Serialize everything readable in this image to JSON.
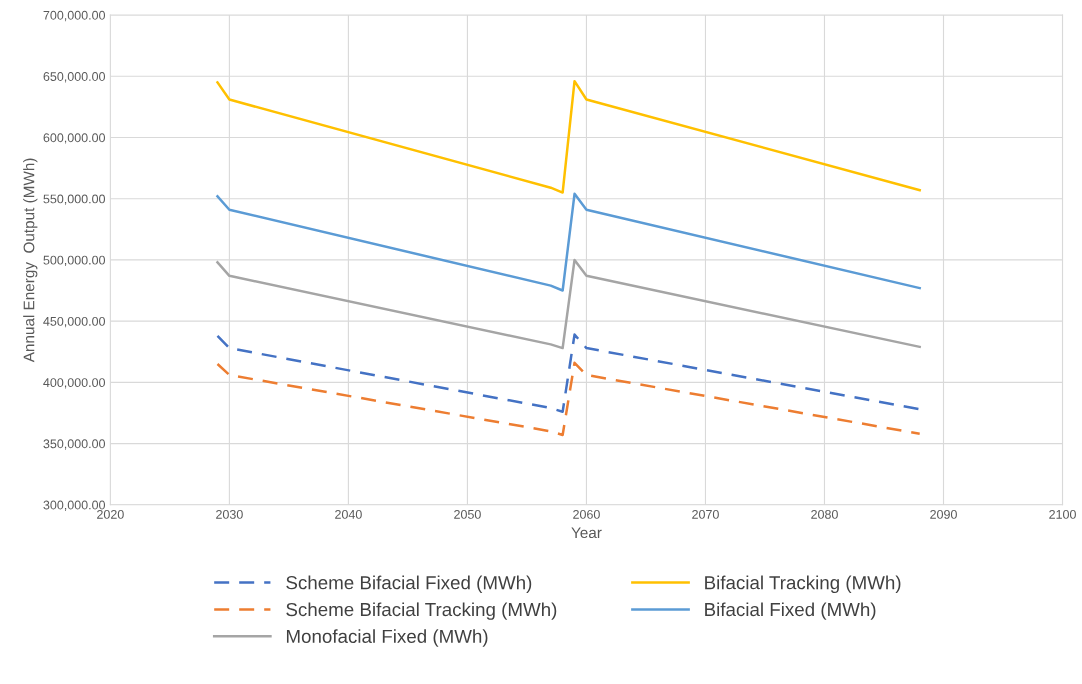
{
  "chart_data": {
    "type": "line",
    "xlabel": "Year",
    "ylabel": "Annual Energy  Output (MWh)",
    "xlim": [
      2020,
      2100
    ],
    "xticks": [
      2020,
      2030,
      2040,
      2050,
      2060,
      2070,
      2080,
      2090,
      2100
    ],
    "ylim": [
      300000,
      700000
    ],
    "yticks": [
      {
        "value": 300000,
        "label": "300,000.00"
      },
      {
        "value": 350000,
        "label": "350,000.00"
      },
      {
        "value": 400000,
        "label": "400,000.00"
      },
      {
        "value": 450000,
        "label": "450,000.00"
      },
      {
        "value": 500000,
        "label": "500,000.00"
      },
      {
        "value": 550000,
        "label": "550,000.00"
      },
      {
        "value": 600000,
        "label": "600,000.00"
      },
      {
        "value": 650000,
        "label": "650,000.00"
      },
      {
        "value": 700000,
        "label": "700,000.00"
      }
    ],
    "grid": true,
    "legend": "bottom",
    "marker": "none",
    "x": [
      2029,
      2030,
      2057,
      2058,
      2059,
      2060,
      2088
    ],
    "series": [
      {
        "name": "Scheme Bifacial Fixed (MWh)",
        "color": "#4472c4",
        "line_style": "dashed",
        "values": [
          438000,
          428000,
          379000,
          376000,
          439000,
          428000,
          378000
        ]
      },
      {
        "name": "Scheme Bifacial Tracking (MWh)",
        "color": "#ed7d31",
        "line_style": "dashed",
        "values": [
          415000,
          406000,
          360000,
          357000,
          416000,
          406000,
          358000
        ]
      },
      {
        "name": "Monofacial Fixed (MWh)",
        "color": "#a5a5a5",
        "line_style": "solid",
        "values": [
          498000,
          487000,
          431000,
          428000,
          500000,
          487000,
          429000
        ]
      },
      {
        "name": "Bifacial Tracking (MWh)",
        "color": "#ffc000",
        "line_style": "solid",
        "values": [
          645000,
          631000,
          559000,
          555000,
          646000,
          631000,
          557000
        ]
      },
      {
        "name": "Bifacial Fixed (MWh)",
        "color": "#5b9bd5",
        "line_style": "solid",
        "values": [
          552000,
          541000,
          479000,
          475000,
          554000,
          541000,
          477000
        ]
      }
    ]
  }
}
